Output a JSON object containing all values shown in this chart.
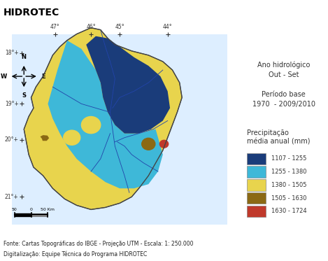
{
  "title": "HIDROTEC",
  "header_bg": "#a8d8ea",
  "map_bg": "#ffffff",
  "fig_bg": "#ffffff",
  "anno_hydro": "Ano hidrológico\nOut - Set",
  "anno_period": "Período base\n1970  - 2009/2010",
  "legend_title": "Precipitação\nmédia anual (mm)",
  "legend_items": [
    {
      "label": "1107 - 1255",
      "color": "#1a3c7a"
    },
    {
      "label": "1255 - 1380",
      "color": "#3eb8d8"
    },
    {
      "label": "1380 - 1505",
      "color": "#e8d44d"
    },
    {
      "label": "1505 - 1630",
      "color": "#8b6914"
    },
    {
      "label": "1630 - 1724",
      "color": "#c0392b"
    }
  ],
  "footer1": "Fonte: Cartas Topográficas do IBGE - Projeção UTM - Escala: 1: 250.000",
  "footer2": "Digitalização: Equipe Técnica do Programa HIDROTEC",
  "coord_labels_top": [
    "47°",
    "46°",
    "45°",
    "44°"
  ],
  "coord_labels_left": [
    "18°+",
    "19°+",
    "20°+",
    "21°+"
  ],
  "scale_label": "50 Km",
  "scale_zero": "0",
  "scale_left": "50"
}
